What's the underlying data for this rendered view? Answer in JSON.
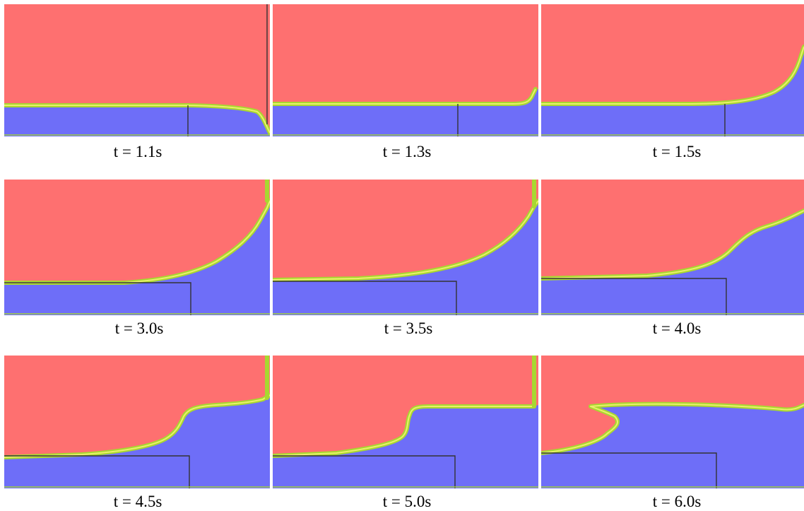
{
  "colors": {
    "air": "#fe7070",
    "water": "#6e6ef8",
    "interface_outer": "#a8d830",
    "interface_inner": "#eaf06a",
    "obstacle_line": "#333333"
  },
  "frames": [
    {
      "caption": "t = 1.1s"
    },
    {
      "caption": "t = 1.3s"
    },
    {
      "caption": "t = 1.5s"
    },
    {
      "caption": "t = 3.0s"
    },
    {
      "caption": "t = 3.5s"
    },
    {
      "caption": "t = 4.0s"
    },
    {
      "caption": "t = 4.5s"
    },
    {
      "caption": "t = 5.0s"
    },
    {
      "caption": "t = 6.0s"
    }
  ]
}
